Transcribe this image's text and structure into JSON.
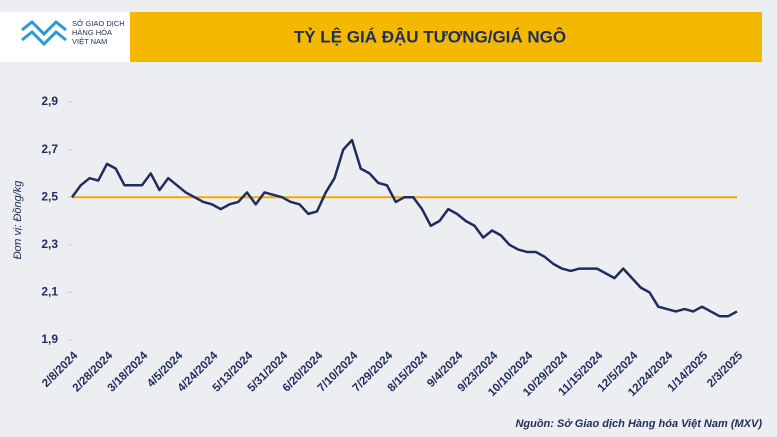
{
  "logo": {
    "lines": [
      "SỞ GIAO DỊCH",
      "HÀNG HÓA",
      "VIỆT NAM"
    ]
  },
  "chart_data": {
    "type": "line",
    "title": "TỶ LỆ GIÁ ĐẬU TƯƠNG/GIÁ NGÔ",
    "ylabel": "Đơn vị: Đồng/kg",
    "source": "Nguồn: Sở Giao dịch Hàng hóa Việt Nam (MXV)",
    "categories": [
      "2/8/2024",
      null,
      null,
      null,
      "2/28/2024",
      null,
      null,
      null,
      "3/18/2024",
      null,
      null,
      null,
      "4/5/2024",
      null,
      null,
      null,
      "4/24/2024",
      null,
      null,
      null,
      "5/13/2024",
      null,
      null,
      null,
      "5/31/2024",
      null,
      null,
      null,
      "6/20/2024",
      null,
      null,
      null,
      "7/10/2024",
      null,
      null,
      null,
      "7/29/2024",
      null,
      null,
      null,
      "8/15/2024",
      null,
      null,
      null,
      "9/4/2024",
      null,
      null,
      null,
      "9/23/2024",
      null,
      null,
      null,
      "10/10/2024",
      null,
      null,
      null,
      "10/29/2024",
      null,
      null,
      null,
      "11/15/2024",
      null,
      null,
      null,
      "12/5/2024",
      null,
      null,
      null,
      "12/24/2024",
      null,
      null,
      null,
      "1/14/2025",
      null,
      null,
      null,
      "2/3/2025"
    ],
    "series": [
      {
        "color": "#1f2d5c",
        "values": [
          2.5,
          2.55,
          2.58,
          2.57,
          2.64,
          2.62,
          2.55,
          2.55,
          2.55,
          2.6,
          2.53,
          2.58,
          2.55,
          2.52,
          2.5,
          2.48,
          2.47,
          2.45,
          2.47,
          2.48,
          2.52,
          2.47,
          2.52,
          2.51,
          2.5,
          2.48,
          2.47,
          2.43,
          2.44,
          2.52,
          2.58,
          2.7,
          2.74,
          2.62,
          2.6,
          2.56,
          2.55,
          2.48,
          2.5,
          2.5,
          2.45,
          2.38,
          2.4,
          2.45,
          2.43,
          2.4,
          2.38,
          2.33,
          2.36,
          2.34,
          2.3,
          2.28,
          2.27,
          2.27,
          2.25,
          2.22,
          2.2,
          2.19,
          2.2,
          2.2,
          2.2,
          2.18,
          2.16,
          2.2,
          2.16,
          2.12,
          2.1,
          2.04,
          2.03,
          2.02,
          2.03,
          2.02,
          2.04,
          2.02,
          2.0,
          2.0,
          2.02
        ]
      }
    ],
    "reference_line": {
      "value": 2.5,
      "color": "#f5a800"
    },
    "ylim": [
      1.9,
      2.9
    ],
    "yticks": [
      {
        "value": 1.9,
        "label": "1,9"
      },
      {
        "value": 2.1,
        "label": "2,1"
      },
      {
        "value": 2.3,
        "label": "2,3"
      },
      {
        "value": 2.5,
        "label": "2,5"
      },
      {
        "value": 2.7,
        "label": "2,7"
      },
      {
        "value": 2.9,
        "label": "2,9"
      }
    ]
  }
}
